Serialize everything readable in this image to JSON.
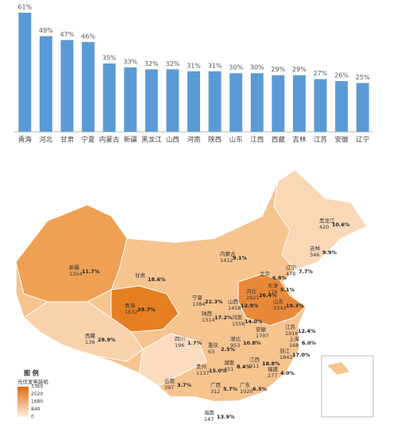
{
  "chart_data": {
    "type": "bar",
    "categories": [
      "青海",
      "河北",
      "甘肃",
      "宁夏",
      "内蒙古",
      "新疆",
      "黑龙江",
      "山西",
      "河南",
      "陕西",
      "山东",
      "江西",
      "西藏",
      "吉林",
      "江苏",
      "安徽",
      "辽宁"
    ],
    "values": [
      61,
      49,
      47,
      46,
      35,
      33,
      32,
      32,
      31,
      31,
      30,
      30,
      29,
      29,
      27,
      26,
      25
    ],
    "value_labels": [
      "61%",
      "49%",
      "47%",
      "46%",
      "35%",
      "33%",
      "32%",
      "32%",
      "31%",
      "31%",
      "30%",
      "30%",
      "29%",
      "29%",
      "27%",
      "26%",
      "25%"
    ],
    "color": "#5b9bd5",
    "ylim": [
      0,
      61
    ]
  },
  "map": {
    "legend": {
      "title": "图 例",
      "subtitle": "光伏发电装机",
      "ticks": [
        "3360",
        "2520",
        "1680",
        "840",
        "0"
      ]
    },
    "regions": [
      {
        "name": "新疆",
        "capacity": "1354",
        "share": "11.7%"
      },
      {
        "name": "甘肃",
        "share": "18.6%"
      },
      {
        "name": "青海",
        "capacity": "1632",
        "share": "39.7%"
      },
      {
        "name": "西藏",
        "capacity": "139",
        "share": "28.9%"
      },
      {
        "name": "内蒙古",
        "capacity": "1412",
        "share": "9.1%"
      },
      {
        "name": "黑龙江",
        "capacity": "420",
        "share": "10.6%"
      },
      {
        "name": "吉林",
        "capacity": "346",
        "share": "9.9%"
      },
      {
        "name": "辽宁",
        "capacity": "478",
        "share": "7.7%"
      },
      {
        "name": "北京",
        "share": "6.8%"
      },
      {
        "name": "天津",
        "capacity": "178",
        "share": "5.1%"
      },
      {
        "name": "宁夏",
        "capacity": "1384",
        "share": "22.3%"
      },
      {
        "name": "陕西",
        "capacity": "1314",
        "share": "17.2%"
      },
      {
        "name": "山西",
        "capacity": "1458",
        "share": "12.9%"
      },
      {
        "name": "河北",
        "capacity": "2921",
        "share": "26.4%"
      },
      {
        "name": "山东",
        "capacity": "3343",
        "share": "19.3%"
      },
      {
        "name": "河南",
        "capacity": "1556",
        "share": "14.0%"
      },
      {
        "name": "四川",
        "capacity": "196",
        "share": "1.7%"
      },
      {
        "name": "重庆",
        "capacity": "63",
        "share": "2.5%"
      },
      {
        "name": "湖北",
        "capacity": "953",
        "share": "10.8%"
      },
      {
        "name": "安徽",
        "capacity": "1707"
      },
      {
        "name": "江苏",
        "capacity": "1916",
        "share": "12.4%"
      },
      {
        "name": "上海",
        "capacity": "168",
        "share": "6.0%"
      },
      {
        "name": "浙江",
        "capacity": "1842",
        "share": "17.0%"
      },
      {
        "name": "贵州",
        "capacity": "1137",
        "share": "15.0%"
      },
      {
        "name": "湖南",
        "capacity": "451",
        "share": "8.4%"
      },
      {
        "name": "江西",
        "capacity": "911",
        "share": "18.8%"
      },
      {
        "name": "福建",
        "capacity": "277",
        "share": "4.0%"
      },
      {
        "name": "云南",
        "capacity": "397",
        "share": "3.7%"
      },
      {
        "name": "广西",
        "capacity": "312",
        "share": "5.7%"
      },
      {
        "name": "广东",
        "capacity": "1020",
        "share": "6.5%"
      },
      {
        "name": "海南",
        "capacity": "147",
        "share": "13.9%"
      }
    ]
  }
}
